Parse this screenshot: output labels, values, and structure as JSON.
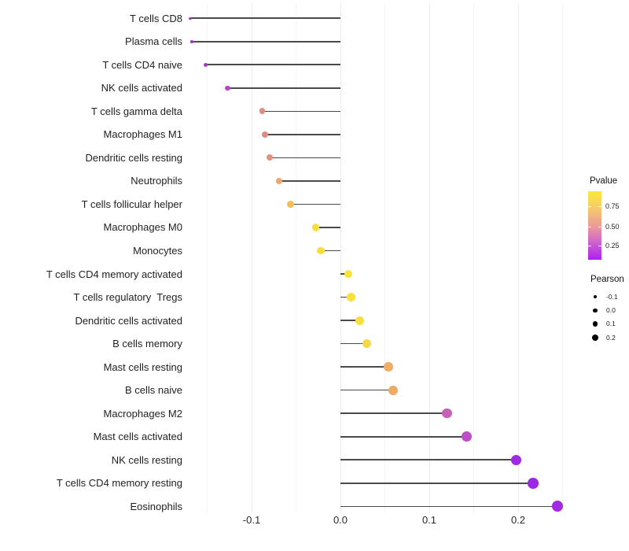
{
  "chart_data": {
    "type": "lollipop",
    "orientation": "horizontal",
    "title": "",
    "xlabel": "",
    "ylabel": "",
    "baseline": 0.0,
    "x_axis": {
      "tick_labels": [
        "-0.1",
        "0.0",
        "0.1",
        "0.2"
      ],
      "tick_values": [
        -0.1,
        0.0,
        0.1,
        0.2
      ],
      "minor_gridline_values": [
        -0.15,
        -0.05,
        0.05,
        0.15,
        0.25
      ],
      "range": [
        -0.175,
        0.26
      ],
      "grid": "on"
    },
    "rows": [
      {
        "label": "T cells CD8",
        "pearson": -0.169,
        "pvalue": 0.18,
        "color": "#a737c4",
        "dot_diameter": 3.4
      },
      {
        "label": "Plasma cells",
        "pearson": -0.167,
        "pvalue": 0.18,
        "color": "#a737c4",
        "dot_diameter": 3.6
      },
      {
        "label": "T cells CD4 naive",
        "pearson": -0.152,
        "pvalue": 0.21,
        "color": "#ac3ac6",
        "dot_diameter": 5.2
      },
      {
        "label": "NK cells activated",
        "pearson": -0.127,
        "pvalue": 0.25,
        "color": "#b843c8",
        "dot_diameter": 6.4
      },
      {
        "label": "T cells gamma delta",
        "pearson": -0.088,
        "pvalue": 0.48,
        "color": "#de8f83",
        "dot_diameter": 7.7
      },
      {
        "label": "Macrophages M1",
        "pearson": -0.085,
        "pvalue": 0.48,
        "color": "#dd8c84",
        "dot_diameter": 7.8
      },
      {
        "label": "Dendritic cells resting",
        "pearson": -0.08,
        "pvalue": 0.5,
        "color": "#e2917b",
        "dot_diameter": 8.0
      },
      {
        "label": "Neutrophils",
        "pearson": -0.069,
        "pvalue": 0.58,
        "color": "#eda76f",
        "dot_diameter": 8.4
      },
      {
        "label": "T cells follicular helper",
        "pearson": -0.056,
        "pvalue": 0.68,
        "color": "#f3be59",
        "dot_diameter": 8.9
      },
      {
        "label": "Macrophages M0",
        "pearson": -0.028,
        "pvalue": 0.83,
        "color": "#f8dc40",
        "dot_diameter": 9.7
      },
      {
        "label": "Monocytes",
        "pearson": -0.022,
        "pvalue": 0.84,
        "color": "#f8de3d",
        "dot_diameter": 9.9
      },
      {
        "label": "T cells CD4 memory activated",
        "pearson": 0.009,
        "pvalue": 0.88,
        "color": "#fae336",
        "dot_diameter": 10.6
      },
      {
        "label": "T cells regulatory  Tregs",
        "pearson": 0.012,
        "pvalue": 0.87,
        "color": "#f9e139",
        "dot_diameter": 10.7
      },
      {
        "label": "Dendritic cells activated",
        "pearson": 0.022,
        "pvalue": 0.86,
        "color": "#f8df3d",
        "dot_diameter": 10.9
      },
      {
        "label": "B cells memory",
        "pearson": 0.03,
        "pvalue": 0.81,
        "color": "#f7d846",
        "dot_diameter": 11.1
      },
      {
        "label": "Mast cells resting",
        "pearson": 0.054,
        "pvalue": 0.61,
        "color": "#efad65",
        "dot_diameter": 11.7
      },
      {
        "label": "B cells naive",
        "pearson": 0.059,
        "pvalue": 0.6,
        "color": "#efaa66",
        "dot_diameter": 11.8
      },
      {
        "label": "Macrophages M2",
        "pearson": 0.12,
        "pvalue": 0.33,
        "color": "#c75fb8",
        "dot_diameter": 12.5
      },
      {
        "label": "Mast cells activated",
        "pearson": 0.142,
        "pvalue": 0.28,
        "color": "#bc4fc6",
        "dot_diameter": 12.8
      },
      {
        "label": "NK cells resting",
        "pearson": 0.198,
        "pvalue": 0.1,
        "color": "#9e2be2",
        "dot_diameter": 13.3
      },
      {
        "label": "T cells CD4 memory resting",
        "pearson": 0.217,
        "pvalue": 0.09,
        "color": "#9a28e4",
        "dot_diameter": 13.5
      },
      {
        "label": "Eosinophils",
        "pearson": 0.244,
        "pvalue": 0.08,
        "color": "#a12be2",
        "dot_diameter": 13.8
      }
    ],
    "legend": {
      "pvalue": {
        "title": "Pvalue",
        "gradient_bottom_to_top": [
          "#ae1ff0",
          "#ce62cf",
          "#ec9d97",
          "#f5c96b",
          "#faea3c"
        ],
        "ticks": [
          {
            "label": "0.75",
            "frac_from_top": 0.224
          },
          {
            "label": "0.50",
            "frac_from_top": 0.512
          },
          {
            "label": "0.25",
            "frac_from_top": 0.793
          }
        ]
      },
      "pearson": {
        "title": "Pearson",
        "items": [
          {
            "label": "-0.1",
            "diameter": 4.4
          },
          {
            "label": "0.0",
            "diameter": 5.4
          },
          {
            "label": "0.1",
            "diameter": 6.6
          },
          {
            "label": "0.2",
            "diameter": 8.0
          }
        ]
      }
    },
    "segment_color": "#4a4a4a",
    "background": "#ffffff"
  }
}
